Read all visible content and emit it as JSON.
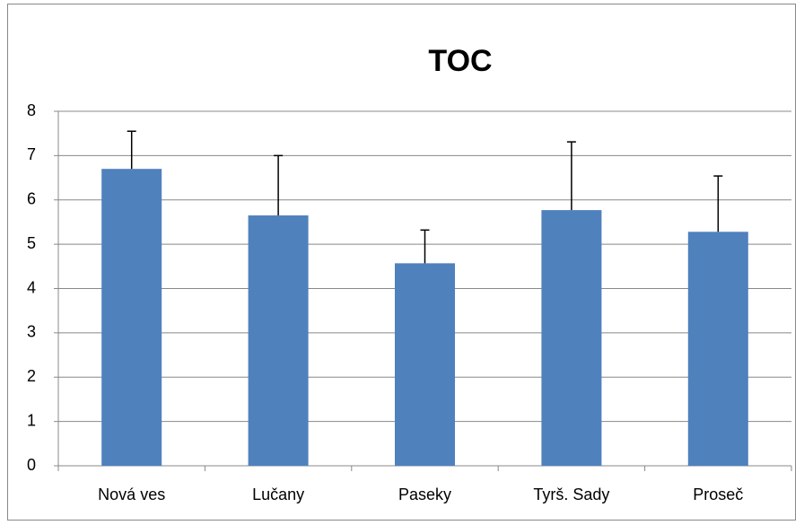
{
  "chart_data": {
    "type": "bar",
    "title": "TOC",
    "categories": [
      "Nová ves",
      "Lučany",
      "Paseky",
      "Tyrš. Sady",
      "Proseč"
    ],
    "values": [
      6.7,
      5.65,
      4.57,
      5.77,
      5.28
    ],
    "errors": [
      0.85,
      1.35,
      0.75,
      1.54,
      1.26
    ],
    "color": "#4f81bd",
    "ylim": [
      0,
      8
    ],
    "yticks": [
      0,
      1,
      2,
      3,
      4,
      5,
      6,
      7,
      8
    ],
    "grid": true
  }
}
